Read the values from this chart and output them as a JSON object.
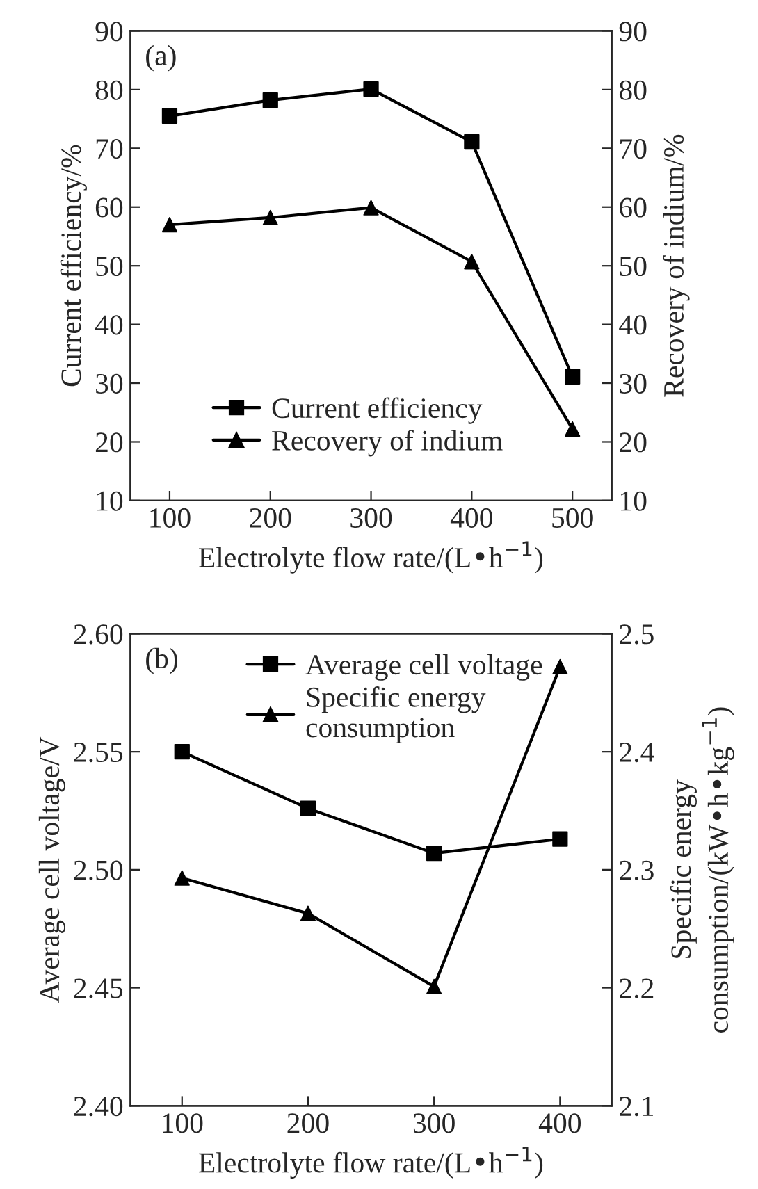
{
  "chart_data": [
    {
      "type": "line",
      "xlabel": "Electrolyte flow rate/(L•h$^{−1}$)",
      "ylabel": "Current efficiency/%",
      "y2label": "Recovery of indium/%",
      "annotations": [
        "(a)"
      ],
      "x": [
        100,
        200,
        300,
        400,
        500
      ],
      "xlim": [
        61,
        539
      ],
      "xticks": [
        100,
        200,
        300,
        400,
        500
      ],
      "ylim": [
        10,
        90
      ],
      "yticks": [
        10,
        20,
        30,
        40,
        50,
        60,
        70,
        80,
        90
      ],
      "y2lim": [
        10,
        90
      ],
      "y2ticks": [
        10,
        20,
        30,
        40,
        50,
        60,
        70,
        80,
        90
      ],
      "legend": "bottom left",
      "grid": false,
      "line_style": "solid",
      "series": [
        {
          "name": "Current efficiency",
          "color": "#000000",
          "marker": "square",
          "values": [
            75.5,
            78.2,
            80.1,
            71.1,
            31.1
          ]
        },
        {
          "name": "Recovery of indium",
          "color": "#000000",
          "marker": "triangle",
          "axis": "y2",
          "values": [
            57.0,
            58.2,
            59.9,
            50.7,
            22.2
          ]
        }
      ]
    },
    {
      "type": "line",
      "xlabel": "Electrolyte flow rate/(L•h$^{−1}$)",
      "ylabel": "Average cell voltage/V",
      "y2label": "Specific energy\nconsumption/(kW•h•kg$^{−1}$)",
      "annotations": [
        "(b)"
      ],
      "x": [
        100,
        200,
        300,
        400
      ],
      "xlim": [
        59,
        441
      ],
      "xticks": [
        100,
        200,
        300,
        400
      ],
      "ylim": [
        2.4,
        2.6
      ],
      "yticks": [
        {
          "value": 2.4,
          "label": "2.40"
        },
        {
          "value": 2.45,
          "label": "2.45"
        },
        {
          "value": 2.5,
          "label": "2.50"
        },
        {
          "value": 2.55,
          "label": "2.55"
        },
        {
          "value": 2.6,
          "label": "2.60"
        }
      ],
      "y2lim": [
        2.1,
        2.5
      ],
      "y2ticks": [
        2.1,
        2.2,
        2.3,
        2.4,
        2.5
      ],
      "legend": "top",
      "grid": false,
      "line_style": "solid",
      "series": [
        {
          "name": "Average cell voltage",
          "color": "#000000",
          "marker": "square",
          "values": [
            2.55,
            2.526,
            2.507,
            2.513
          ]
        },
        {
          "name": "Specific energy\nconsumption",
          "color": "#000000",
          "marker": "triangle",
          "axis": "y2",
          "values": [
            2.293,
            2.263,
            2.201,
            2.472
          ]
        }
      ]
    }
  ]
}
